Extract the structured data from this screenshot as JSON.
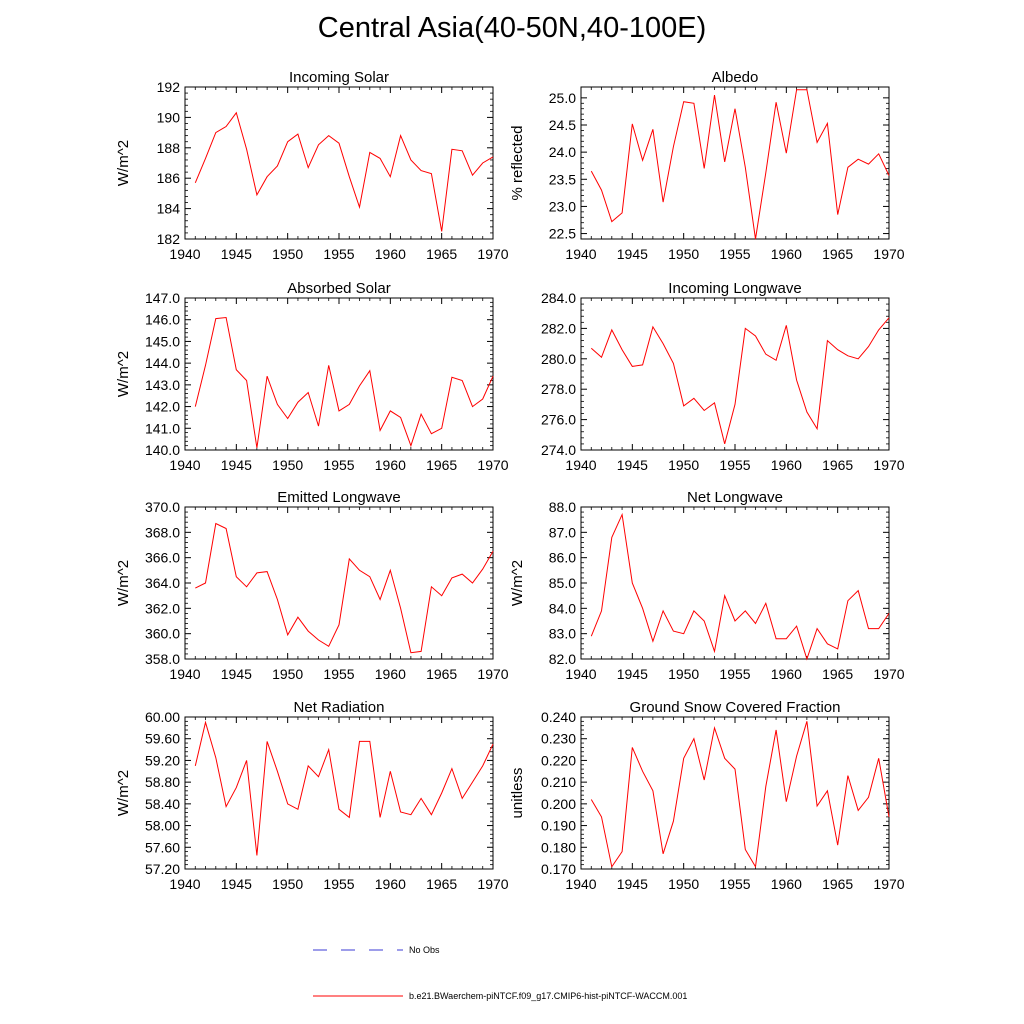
{
  "figure": {
    "title": "Central Asia(40-50N,40-100E)",
    "line_color": "#ff0000",
    "obs_color": "#3b3bd6"
  },
  "legend": {
    "obs_label": "No Obs",
    "model_label": "b.e21.BWaerchem-piNTCF.f09_g17.CMIP6-hist-piNTCF-WACCM.001"
  },
  "chart_data": [
    {
      "type": "line",
      "title": "Incoming Solar",
      "ylabel": "W/m^2",
      "xlabel": "",
      "xlim": [
        1940,
        1970
      ],
      "ylim": [
        182,
        192
      ],
      "xticks": [
        1940,
        1945,
        1950,
        1955,
        1960,
        1965,
        1970
      ],
      "yticks": [
        "182",
        "184",
        "186",
        "188",
        "190",
        "192"
      ],
      "x": [
        1941,
        1942,
        1943,
        1944,
        1945,
        1946,
        1947,
        1948,
        1949,
        1950,
        1951,
        1952,
        1953,
        1954,
        1955,
        1956,
        1957,
        1958,
        1959,
        1960,
        1961,
        1962,
        1963,
        1964,
        1965,
        1966,
        1967,
        1968,
        1969,
        1970
      ],
      "values": [
        185.7,
        187.3,
        189.0,
        189.4,
        190.3,
        187.9,
        184.9,
        186.1,
        186.8,
        188.4,
        188.9,
        186.7,
        188.2,
        188.8,
        188.3,
        186.1,
        184.1,
        187.7,
        187.3,
        186.1,
        188.8,
        187.2,
        186.5,
        186.3,
        182.5,
        187.9,
        187.8,
        186.2,
        187.0,
        187.4
      ],
      "grid": false
    },
    {
      "type": "line",
      "title": "Albedo",
      "ylabel": "% reflected",
      "xlabel": "",
      "xlim": [
        1940,
        1970
      ],
      "ylim": [
        22.4,
        25.2
      ],
      "xticks": [
        1940,
        1945,
        1950,
        1955,
        1960,
        1965,
        1970
      ],
      "yticks": [
        "22.5",
        "23.0",
        "23.5",
        "24.0",
        "24.5",
        "25.0"
      ],
      "x": [
        1941,
        1942,
        1943,
        1944,
        1945,
        1946,
        1947,
        1948,
        1949,
        1950,
        1951,
        1952,
        1953,
        1954,
        1955,
        1956,
        1957,
        1958,
        1959,
        1960,
        1961,
        1962,
        1963,
        1964,
        1965,
        1966,
        1967,
        1968,
        1969,
        1970
      ],
      "values": [
        23.65,
        23.3,
        22.72,
        22.88,
        24.52,
        23.85,
        24.42,
        23.08,
        24.1,
        24.93,
        24.9,
        23.7,
        25.05,
        23.82,
        24.8,
        23.72,
        22.4,
        23.62,
        24.92,
        23.98,
        25.15,
        25.15,
        24.18,
        24.53,
        22.85,
        23.72,
        23.87,
        23.78,
        23.97,
        23.57
      ],
      "grid": false
    },
    {
      "type": "line",
      "title": "Absorbed Solar",
      "ylabel": "W/m^2",
      "xlabel": "",
      "xlim": [
        1940,
        1970
      ],
      "ylim": [
        140.0,
        147.0
      ],
      "xticks": [
        1940,
        1945,
        1950,
        1955,
        1960,
        1965,
        1970
      ],
      "yticks": [
        "140.0",
        "141.0",
        "142.0",
        "143.0",
        "144.0",
        "145.0",
        "146.0",
        "147.0"
      ],
      "x": [
        1941,
        1942,
        1943,
        1944,
        1945,
        1946,
        1947,
        1948,
        1949,
        1950,
        1951,
        1952,
        1953,
        1954,
        1955,
        1956,
        1957,
        1958,
        1959,
        1960,
        1961,
        1962,
        1963,
        1964,
        1965,
        1966,
        1967,
        1968,
        1969,
        1970
      ],
      "values": [
        142.0,
        143.9,
        146.05,
        146.1,
        143.7,
        143.2,
        140.1,
        143.4,
        142.1,
        141.45,
        142.2,
        142.65,
        141.1,
        143.9,
        141.8,
        142.1,
        142.95,
        143.65,
        140.9,
        141.8,
        141.5,
        140.2,
        141.65,
        140.75,
        141.0,
        143.35,
        143.2,
        142.0,
        142.35,
        143.4
      ],
      "grid": false
    },
    {
      "type": "line",
      "title": "Incoming Longwave",
      "ylabel": "",
      "xlabel": "",
      "xlim": [
        1940,
        1970
      ],
      "ylim": [
        274.0,
        284.0
      ],
      "xticks": [
        1940,
        1945,
        1950,
        1955,
        1960,
        1965,
        1970
      ],
      "yticks": [
        "274.0",
        "276.0",
        "278.0",
        "280.0",
        "282.0",
        "284.0"
      ],
      "x": [
        1941,
        1942,
        1943,
        1944,
        1945,
        1946,
        1947,
        1948,
        1949,
        1950,
        1951,
        1952,
        1953,
        1954,
        1955,
        1956,
        1957,
        1958,
        1959,
        1960,
        1961,
        1962,
        1963,
        1964,
        1965,
        1966,
        1967,
        1968,
        1969,
        1970
      ],
      "values": [
        280.7,
        280.1,
        281.9,
        280.6,
        279.5,
        279.6,
        282.1,
        281.0,
        279.7,
        276.9,
        277.4,
        276.6,
        277.1,
        274.4,
        277.0,
        282.0,
        281.5,
        280.3,
        279.9,
        282.2,
        278.6,
        276.5,
        275.4,
        281.2,
        280.6,
        280.2,
        280.0,
        280.8,
        281.9,
        282.7
      ],
      "grid": false
    },
    {
      "type": "line",
      "title": "Emitted Longwave",
      "ylabel": "W/m^2",
      "xlabel": "",
      "xlim": [
        1940,
        1970
      ],
      "ylim": [
        358.0,
        370.0
      ],
      "xticks": [
        1940,
        1945,
        1950,
        1955,
        1960,
        1965,
        1970
      ],
      "yticks": [
        "358.0",
        "360.0",
        "362.0",
        "364.0",
        "366.0",
        "368.0",
        "370.0"
      ],
      "x": [
        1941,
        1942,
        1943,
        1944,
        1945,
        1946,
        1947,
        1948,
        1949,
        1950,
        1951,
        1952,
        1953,
        1954,
        1955,
        1956,
        1957,
        1958,
        1959,
        1960,
        1961,
        1962,
        1963,
        1964,
        1965,
        1966,
        1967,
        1968,
        1969,
        1970
      ],
      "values": [
        363.6,
        364.0,
        368.7,
        368.3,
        364.5,
        363.7,
        364.8,
        364.9,
        362.7,
        359.9,
        361.3,
        360.2,
        359.5,
        359.0,
        360.7,
        365.9,
        365.0,
        364.5,
        362.7,
        365.0,
        362.0,
        358.5,
        358.6,
        363.7,
        363.0,
        364.4,
        364.7,
        364.0,
        365.1,
        366.5
      ],
      "grid": false
    },
    {
      "type": "line",
      "title": "Net Longwave",
      "ylabel": "W/m^2",
      "xlabel": "",
      "xlim": [
        1940,
        1970
      ],
      "ylim": [
        82.0,
        88.0
      ],
      "xticks": [
        1940,
        1945,
        1950,
        1955,
        1960,
        1965,
        1970
      ],
      "yticks": [
        "82.0",
        "83.0",
        "84.0",
        "85.0",
        "86.0",
        "87.0",
        "88.0"
      ],
      "x": [
        1941,
        1942,
        1943,
        1944,
        1945,
        1946,
        1947,
        1948,
        1949,
        1950,
        1951,
        1952,
        1953,
        1954,
        1955,
        1956,
        1957,
        1958,
        1959,
        1960,
        1961,
        1962,
        1963,
        1964,
        1965,
        1966,
        1967,
        1968,
        1969,
        1970
      ],
      "values": [
        82.9,
        83.9,
        86.8,
        87.7,
        85.0,
        84.0,
        82.7,
        83.9,
        83.1,
        83.0,
        83.9,
        83.5,
        82.3,
        84.5,
        83.5,
        83.9,
        83.4,
        84.2,
        82.8,
        82.8,
        83.3,
        82.0,
        83.2,
        82.6,
        82.4,
        84.3,
        84.7,
        83.2,
        83.2,
        83.8
      ],
      "grid": false
    },
    {
      "type": "line",
      "title": "Net Radiation",
      "ylabel": "W/m^2",
      "xlabel": "",
      "xlim": [
        1940,
        1970
      ],
      "ylim": [
        57.2,
        60.0
      ],
      "xticks": [
        1940,
        1945,
        1950,
        1955,
        1960,
        1965,
        1970
      ],
      "yticks": [
        "57.20",
        "57.60",
        "58.00",
        "58.40",
        "58.80",
        "59.20",
        "59.60",
        "60.00"
      ],
      "x": [
        1941,
        1942,
        1943,
        1944,
        1945,
        1946,
        1947,
        1948,
        1949,
        1950,
        1951,
        1952,
        1953,
        1954,
        1955,
        1956,
        1957,
        1958,
        1959,
        1960,
        1961,
        1962,
        1963,
        1964,
        1965,
        1966,
        1967,
        1968,
        1969,
        1970
      ],
      "values": [
        59.1,
        59.9,
        59.25,
        58.35,
        58.7,
        59.2,
        57.45,
        59.55,
        59.0,
        58.4,
        58.3,
        59.1,
        58.9,
        59.4,
        58.3,
        58.15,
        59.55,
        59.55,
        58.15,
        59.0,
        58.25,
        58.2,
        58.5,
        58.2,
        58.6,
        59.05,
        58.5,
        58.8,
        59.1,
        59.5
      ],
      "grid": false
    },
    {
      "type": "line",
      "title": "Ground Snow Covered Fraction",
      "ylabel": "unitless",
      "xlabel": "",
      "xlim": [
        1940,
        1970
      ],
      "ylim": [
        0.17,
        0.24
      ],
      "xticks": [
        1940,
        1945,
        1950,
        1955,
        1960,
        1965,
        1970
      ],
      "yticks": [
        "0.170",
        "0.180",
        "0.190",
        "0.200",
        "0.210",
        "0.220",
        "0.230",
        "0.240"
      ],
      "x": [
        1941,
        1942,
        1943,
        1944,
        1945,
        1946,
        1947,
        1948,
        1949,
        1950,
        1951,
        1952,
        1953,
        1954,
        1955,
        1956,
        1957,
        1958,
        1959,
        1960,
        1961,
        1962,
        1963,
        1964,
        1965,
        1966,
        1967,
        1968,
        1969,
        1970
      ],
      "values": [
        0.202,
        0.194,
        0.171,
        0.178,
        0.226,
        0.215,
        0.206,
        0.177,
        0.192,
        0.221,
        0.23,
        0.211,
        0.235,
        0.221,
        0.216,
        0.179,
        0.171,
        0.208,
        0.234,
        0.201,
        0.222,
        0.238,
        0.199,
        0.206,
        0.181,
        0.213,
        0.197,
        0.203,
        0.221,
        0.194
      ],
      "grid": false
    }
  ]
}
